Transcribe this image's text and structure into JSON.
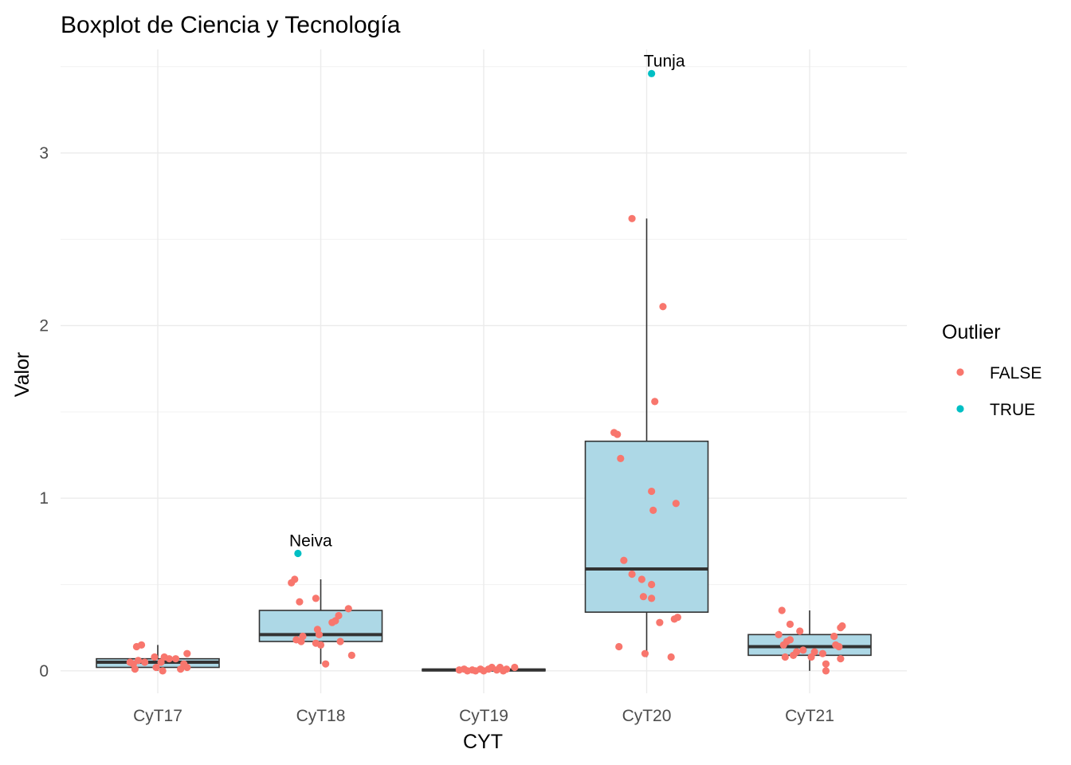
{
  "chart_data": {
    "type": "boxplot",
    "title": "Boxplot de Ciencia y Tecnología",
    "xlabel": "CYT",
    "ylabel": "Valor",
    "ylim": [
      -0.13,
      3.6
    ],
    "yticks": [
      0,
      1,
      2,
      3
    ],
    "grid": true,
    "legend": {
      "title": "Outlier",
      "placement": "right",
      "entries": [
        {
          "label": "FALSE",
          "color": "#F8766D"
        },
        {
          "label": "TRUE",
          "color": "#00BFC4"
        }
      ]
    },
    "box_fill": "#ADD8E6",
    "box_stroke": "#333333",
    "categories": [
      "CyT17",
      "CyT18",
      "CyT19",
      "CyT20",
      "CyT21"
    ],
    "boxes": [
      {
        "category": "CyT17",
        "whisker_low": 0.0,
        "q1": 0.02,
        "median": 0.05,
        "q3": 0.07,
        "whisker_high": 0.15
      },
      {
        "category": "CyT18",
        "whisker_low": 0.04,
        "q1": 0.17,
        "median": 0.21,
        "q3": 0.35,
        "whisker_high": 0.53
      },
      {
        "category": "CyT19",
        "whisker_low": 0.0,
        "q1": 0.0,
        "median": 0.005,
        "q3": 0.01,
        "whisker_high": 0.02
      },
      {
        "category": "CyT20",
        "whisker_low": 0.08,
        "q1": 0.34,
        "median": 0.59,
        "q3": 1.33,
        "whisker_high": 2.62
      },
      {
        "category": "CyT21",
        "whisker_low": 0.0,
        "q1": 0.09,
        "median": 0.14,
        "q3": 0.21,
        "whisker_high": 0.35
      }
    ],
    "points": [
      {
        "category": "CyT17",
        "x_jitter": -0.15,
        "value": 0.04,
        "outlier": false
      },
      {
        "category": "CyT17",
        "x_jitter": -0.13,
        "value": 0.14,
        "outlier": false
      },
      {
        "category": "CyT17",
        "x_jitter": -0.1,
        "value": 0.15,
        "outlier": false
      },
      {
        "category": "CyT17",
        "x_jitter": -0.12,
        "value": 0.06,
        "outlier": false
      },
      {
        "category": "CyT17",
        "x_jitter": -0.08,
        "value": 0.05,
        "outlier": false
      },
      {
        "category": "CyT17",
        "x_jitter": -0.17,
        "value": 0.05,
        "outlier": false
      },
      {
        "category": "CyT17",
        "x_jitter": -0.14,
        "value": 0.01,
        "outlier": false
      },
      {
        "category": "CyT17",
        "x_jitter": -0.02,
        "value": 0.08,
        "outlier": false
      },
      {
        "category": "CyT17",
        "x_jitter": -0.01,
        "value": 0.02,
        "outlier": false
      },
      {
        "category": "CyT17",
        "x_jitter": 0.02,
        "value": 0.05,
        "outlier": false
      },
      {
        "category": "CyT17",
        "x_jitter": 0.04,
        "value": 0.08,
        "outlier": false
      },
      {
        "category": "CyT17",
        "x_jitter": 0.03,
        "value": 0.0,
        "outlier": false
      },
      {
        "category": "CyT17",
        "x_jitter": 0.07,
        "value": 0.07,
        "outlier": false
      },
      {
        "category": "CyT17",
        "x_jitter": 0.11,
        "value": 0.07,
        "outlier": false
      },
      {
        "category": "CyT17",
        "x_jitter": 0.14,
        "value": 0.01,
        "outlier": false
      },
      {
        "category": "CyT17",
        "x_jitter": 0.16,
        "value": 0.04,
        "outlier": false
      },
      {
        "category": "CyT17",
        "x_jitter": 0.18,
        "value": 0.1,
        "outlier": false
      },
      {
        "category": "CyT17",
        "x_jitter": 0.18,
        "value": 0.02,
        "outlier": false
      },
      {
        "category": "CyT18",
        "x_jitter": -0.18,
        "value": 0.51,
        "outlier": false
      },
      {
        "category": "CyT18",
        "x_jitter": -0.16,
        "value": 0.53,
        "outlier": false
      },
      {
        "category": "CyT18",
        "x_jitter": -0.13,
        "value": 0.4,
        "outlier": false
      },
      {
        "category": "CyT18",
        "x_jitter": -0.15,
        "value": 0.18,
        "outlier": false
      },
      {
        "category": "CyT18",
        "x_jitter": -0.11,
        "value": 0.2,
        "outlier": false
      },
      {
        "category": "CyT18",
        "x_jitter": -0.12,
        "value": 0.17,
        "outlier": false
      },
      {
        "category": "CyT18",
        "x_jitter": -0.03,
        "value": 0.42,
        "outlier": false
      },
      {
        "category": "CyT18",
        "x_jitter": -0.02,
        "value": 0.24,
        "outlier": false
      },
      {
        "category": "CyT18",
        "x_jitter": -0.01,
        "value": 0.21,
        "outlier": false
      },
      {
        "category": "CyT18",
        "x_jitter": -0.03,
        "value": 0.16,
        "outlier": false
      },
      {
        "category": "CyT18",
        "x_jitter": 0.0,
        "value": 0.15,
        "outlier": false
      },
      {
        "category": "CyT18",
        "x_jitter": 0.03,
        "value": 0.04,
        "outlier": false
      },
      {
        "category": "CyT18",
        "x_jitter": 0.07,
        "value": 0.28,
        "outlier": false
      },
      {
        "category": "CyT18",
        "x_jitter": 0.09,
        "value": 0.29,
        "outlier": false
      },
      {
        "category": "CyT18",
        "x_jitter": 0.11,
        "value": 0.32,
        "outlier": false
      },
      {
        "category": "CyT18",
        "x_jitter": 0.12,
        "value": 0.17,
        "outlier": false
      },
      {
        "category": "CyT18",
        "x_jitter": 0.17,
        "value": 0.36,
        "outlier": false
      },
      {
        "category": "CyT18",
        "x_jitter": 0.19,
        "value": 0.09,
        "outlier": false
      },
      {
        "category": "CyT18",
        "x_jitter": -0.14,
        "value": 0.68,
        "outlier": true,
        "label": "Neiva"
      },
      {
        "category": "CyT19",
        "x_jitter": -0.15,
        "value": 0.005,
        "outlier": false
      },
      {
        "category": "CyT19",
        "x_jitter": -0.12,
        "value": 0.01,
        "outlier": false
      },
      {
        "category": "CyT19",
        "x_jitter": -0.1,
        "value": 0.0,
        "outlier": false
      },
      {
        "category": "CyT19",
        "x_jitter": -0.07,
        "value": 0.005,
        "outlier": false
      },
      {
        "category": "CyT19",
        "x_jitter": -0.05,
        "value": 0.0,
        "outlier": false
      },
      {
        "category": "CyT19",
        "x_jitter": -0.02,
        "value": 0.01,
        "outlier": false
      },
      {
        "category": "CyT19",
        "x_jitter": 0.0,
        "value": 0.0,
        "outlier": false
      },
      {
        "category": "CyT19",
        "x_jitter": 0.03,
        "value": 0.01,
        "outlier": false
      },
      {
        "category": "CyT19",
        "x_jitter": 0.05,
        "value": 0.02,
        "outlier": false
      },
      {
        "category": "CyT19",
        "x_jitter": 0.08,
        "value": 0.005,
        "outlier": false
      },
      {
        "category": "CyT19",
        "x_jitter": 0.1,
        "value": 0.02,
        "outlier": false
      },
      {
        "category": "CyT19",
        "x_jitter": 0.12,
        "value": 0.0,
        "outlier": false
      },
      {
        "category": "CyT19",
        "x_jitter": 0.14,
        "value": 0.01,
        "outlier": false
      },
      {
        "category": "CyT19",
        "x_jitter": 0.19,
        "value": 0.02,
        "outlier": false
      },
      {
        "category": "CyT20",
        "x_jitter": -0.09,
        "value": 2.62,
        "outlier": false
      },
      {
        "category": "CyT20",
        "x_jitter": 0.1,
        "value": 2.11,
        "outlier": false
      },
      {
        "category": "CyT20",
        "x_jitter": 0.05,
        "value": 1.56,
        "outlier": false
      },
      {
        "category": "CyT20",
        "x_jitter": -0.2,
        "value": 1.38,
        "outlier": false
      },
      {
        "category": "CyT20",
        "x_jitter": -0.18,
        "value": 1.37,
        "outlier": false
      },
      {
        "category": "CyT20",
        "x_jitter": -0.16,
        "value": 1.23,
        "outlier": false
      },
      {
        "category": "CyT20",
        "x_jitter": 0.03,
        "value": 1.04,
        "outlier": false
      },
      {
        "category": "CyT20",
        "x_jitter": 0.18,
        "value": 0.97,
        "outlier": false
      },
      {
        "category": "CyT20",
        "x_jitter": 0.04,
        "value": 0.93,
        "outlier": false
      },
      {
        "category": "CyT20",
        "x_jitter": -0.14,
        "value": 0.64,
        "outlier": false
      },
      {
        "category": "CyT20",
        "x_jitter": -0.09,
        "value": 0.56,
        "outlier": false
      },
      {
        "category": "CyT20",
        "x_jitter": -0.03,
        "value": 0.53,
        "outlier": false
      },
      {
        "category": "CyT20",
        "x_jitter": 0.03,
        "value": 0.5,
        "outlier": false
      },
      {
        "category": "CyT20",
        "x_jitter": -0.02,
        "value": 0.43,
        "outlier": false
      },
      {
        "category": "CyT20",
        "x_jitter": 0.03,
        "value": 0.42,
        "outlier": false
      },
      {
        "category": "CyT20",
        "x_jitter": 0.17,
        "value": 0.3,
        "outlier": false
      },
      {
        "category": "CyT20",
        "x_jitter": 0.19,
        "value": 0.31,
        "outlier": false
      },
      {
        "category": "CyT20",
        "x_jitter": 0.08,
        "value": 0.28,
        "outlier": false
      },
      {
        "category": "CyT20",
        "x_jitter": -0.17,
        "value": 0.14,
        "outlier": false
      },
      {
        "category": "CyT20",
        "x_jitter": -0.01,
        "value": 0.1,
        "outlier": false
      },
      {
        "category": "CyT20",
        "x_jitter": 0.15,
        "value": 0.08,
        "outlier": false
      },
      {
        "category": "CyT20",
        "x_jitter": 0.03,
        "value": 3.46,
        "outlier": true,
        "label": "Tunja"
      },
      {
        "category": "CyT21",
        "x_jitter": -0.17,
        "value": 0.35,
        "outlier": false
      },
      {
        "category": "CyT21",
        "x_jitter": -0.12,
        "value": 0.27,
        "outlier": false
      },
      {
        "category": "CyT21",
        "x_jitter": -0.19,
        "value": 0.21,
        "outlier": false
      },
      {
        "category": "CyT21",
        "x_jitter": -0.14,
        "value": 0.17,
        "outlier": false
      },
      {
        "category": "CyT21",
        "x_jitter": -0.16,
        "value": 0.15,
        "outlier": false
      },
      {
        "category": "CyT21",
        "x_jitter": -0.12,
        "value": 0.18,
        "outlier": false
      },
      {
        "category": "CyT21",
        "x_jitter": -0.15,
        "value": 0.08,
        "outlier": false
      },
      {
        "category": "CyT21",
        "x_jitter": -0.1,
        "value": 0.09,
        "outlier": false
      },
      {
        "category": "CyT21",
        "x_jitter": -0.08,
        "value": 0.11,
        "outlier": false
      },
      {
        "category": "CyT21",
        "x_jitter": -0.06,
        "value": 0.23,
        "outlier": false
      },
      {
        "category": "CyT21",
        "x_jitter": -0.04,
        "value": 0.12,
        "outlier": false
      },
      {
        "category": "CyT21",
        "x_jitter": 0.01,
        "value": 0.08,
        "outlier": false
      },
      {
        "category": "CyT21",
        "x_jitter": 0.03,
        "value": 0.11,
        "outlier": false
      },
      {
        "category": "CyT21",
        "x_jitter": 0.08,
        "value": 0.1,
        "outlier": false
      },
      {
        "category": "CyT21",
        "x_jitter": 0.1,
        "value": 0.0,
        "outlier": false
      },
      {
        "category": "CyT21",
        "x_jitter": 0.1,
        "value": 0.04,
        "outlier": false
      },
      {
        "category": "CyT21",
        "x_jitter": 0.15,
        "value": 0.2,
        "outlier": false
      },
      {
        "category": "CyT21",
        "x_jitter": 0.16,
        "value": 0.15,
        "outlier": false
      },
      {
        "category": "CyT21",
        "x_jitter": 0.18,
        "value": 0.14,
        "outlier": false
      },
      {
        "category": "CyT21",
        "x_jitter": 0.19,
        "value": 0.25,
        "outlier": false
      },
      {
        "category": "CyT21",
        "x_jitter": 0.2,
        "value": 0.26,
        "outlier": false
      },
      {
        "category": "CyT21",
        "x_jitter": 0.19,
        "value": 0.07,
        "outlier": false
      }
    ]
  }
}
